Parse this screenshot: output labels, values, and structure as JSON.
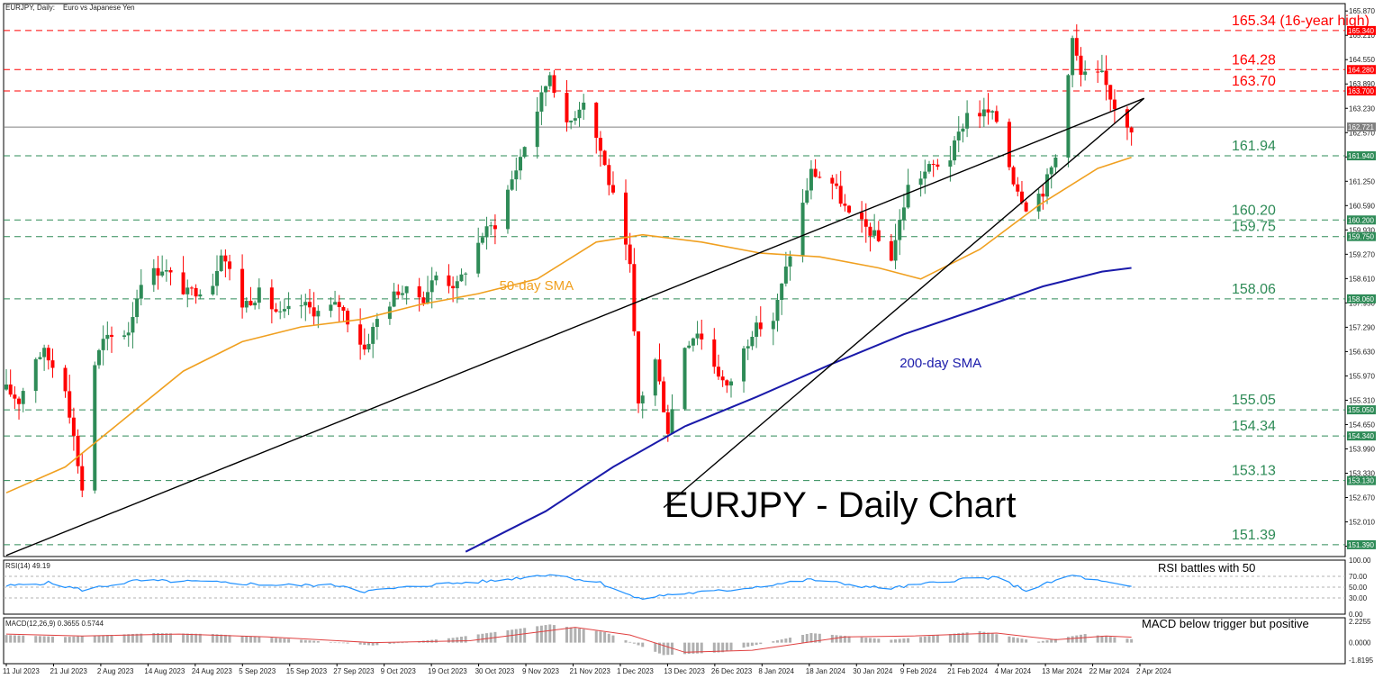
{
  "header": {
    "symbol_label": "EURJPY, Daily:",
    "description": "Euro vs Japanese Yen"
  },
  "colors": {
    "bull": "#2e8b57",
    "bear": "#ff0000",
    "sma50": "#f0a020",
    "sma200": "#1a1aaa",
    "support": "#2e8b57",
    "resistance": "#ff0000",
    "current": "#808080",
    "rsi": "#1e90ff",
    "macd_signal": "#e04040",
    "macd_hist": "#b0b0b0"
  },
  "chart_data": [
    {
      "type": "candlestick",
      "title": "EURJPY - Daily Chart",
      "x_axis_labels": [
        "11 Jul 2023",
        "21 Jul 2023",
        "2 Aug 2023",
        "14 Aug 2023",
        "24 Aug 2023",
        "5 Sep 2023",
        "15 Sep 2023",
        "27 Sep 2023",
        "9 Oct 2023",
        "19 Oct 2023",
        "30 Oct 2023",
        "9 Nov 2023",
        "21 Nov 2023",
        "1 Dec 2023",
        "13 Dec 2023",
        "26 Dec 2023",
        "8 Jan 2024",
        "18 Jan 2024",
        "30 Jan 2024",
        "9 Feb 2024",
        "21 Feb 2024",
        "4 Mar 2024",
        "13 Mar 2024",
        "22 Mar 2024",
        "2 Apr 2024"
      ],
      "y_ticks": [
        "165.870",
        "165.210",
        "164.550",
        "163.890",
        "163.230",
        "162.570",
        "161.910",
        "161.250",
        "160.590",
        "159.930",
        "159.270",
        "158.610",
        "157.950",
        "157.290",
        "156.630",
        "155.970",
        "155.310",
        "154.650",
        "153.990",
        "153.330",
        "152.670",
        "152.010",
        "151.350"
      ],
      "y_range": [
        151.07,
        166.07
      ],
      "current_price": "162.721",
      "levels": [
        {
          "value": 165.34,
          "label": "165.34 (16-year high)",
          "tag": "165.340",
          "kind": "resistance"
        },
        {
          "value": 164.28,
          "label": "164.28",
          "tag": "164.280",
          "kind": "resistance"
        },
        {
          "value": 163.7,
          "label": "163.70",
          "tag": "163.700",
          "kind": "resistance"
        },
        {
          "value": 161.94,
          "label": "161.94",
          "tag": "161.940",
          "kind": "support"
        },
        {
          "value": 160.2,
          "label": "160.20",
          "tag": "160.200",
          "kind": "support"
        },
        {
          "value": 159.75,
          "label": "159.75",
          "tag": "159.750",
          "kind": "support"
        },
        {
          "value": 158.06,
          "label": "158.06",
          "tag": "158.060",
          "kind": "support"
        },
        {
          "value": 155.05,
          "label": "155.05",
          "tag": "155.050",
          "kind": "support"
        },
        {
          "value": 154.34,
          "label": "154.34",
          "tag": "154.340",
          "kind": "support"
        },
        {
          "value": 153.13,
          "label": "153.13",
          "tag": "153.130",
          "kind": "support"
        },
        {
          "value": 151.39,
          "label": "151.39",
          "tag": "151.390",
          "kind": "support"
        }
      ],
      "anchors": [
        [
          "2023-07-10",
          155.6
        ],
        [
          "2023-07-13",
          155.3
        ],
        [
          "2023-07-17",
          156.5
        ],
        [
          "2023-07-19",
          156.6
        ],
        [
          "2023-07-24",
          155.7
        ],
        [
          "2023-07-28",
          152.9
        ],
        [
          "2023-07-31",
          156.3
        ],
        [
          "2023-08-02",
          156.9
        ],
        [
          "2023-08-08",
          157.2
        ],
        [
          "2023-08-11",
          158.6
        ],
        [
          "2023-08-16",
          158.9
        ],
        [
          "2023-08-22",
          158.2
        ],
        [
          "2023-08-28",
          158.5
        ],
        [
          "2023-08-30",
          159.4
        ],
        [
          "2023-09-04",
          157.9
        ],
        [
          "2023-09-08",
          158.2
        ],
        [
          "2023-09-13",
          157.6
        ],
        [
          "2023-09-18",
          157.9
        ],
        [
          "2023-09-22",
          157.7
        ],
        [
          "2023-09-27",
          157.9
        ],
        [
          "2023-10-03",
          156.7
        ],
        [
          "2023-10-06",
          157.5
        ],
        [
          "2023-10-11",
          158.3
        ],
        [
          "2023-10-17",
          158.1
        ],
        [
          "2023-10-20",
          158.7
        ],
        [
          "2023-10-25",
          158.4
        ],
        [
          "2023-10-31",
          159.8
        ],
        [
          "2023-11-03",
          160.1
        ],
        [
          "2023-11-08",
          161.6
        ],
        [
          "2023-11-13",
          163.2
        ],
        [
          "2023-11-16",
          164.2
        ],
        [
          "2023-11-20",
          162.7
        ],
        [
          "2023-11-24",
          163.5
        ],
        [
          "2023-11-28",
          162.1
        ],
        [
          "2023-12-01",
          160.8
        ],
        [
          "2023-12-05",
          158.9
        ],
        [
          "2023-12-07",
          155.2
        ],
        [
          "2023-12-11",
          156.4
        ],
        [
          "2023-12-14",
          154.5
        ],
        [
          "2023-12-18",
          156.8
        ],
        [
          "2023-12-21",
          157.2
        ],
        [
          "2023-12-28",
          155.6
        ],
        [
          "2024-01-03",
          157.2
        ],
        [
          "2024-01-08",
          157.5
        ],
        [
          "2024-01-12",
          159.3
        ],
        [
          "2024-01-17",
          161.5
        ],
        [
          "2024-01-22",
          161.2
        ],
        [
          "2024-01-26",
          160.3
        ],
        [
          "2024-01-31",
          159.9
        ],
        [
          "2024-02-05",
          159.2
        ],
        [
          "2024-02-09",
          161.1
        ],
        [
          "2024-02-14",
          161.6
        ],
        [
          "2024-02-19",
          161.9
        ],
        [
          "2024-02-23",
          163.1
        ],
        [
          "2024-02-28",
          163.1
        ],
        [
          "2024-03-01",
          162.9
        ],
        [
          "2024-03-05",
          161.3
        ],
        [
          "2024-03-08",
          160.6
        ],
        [
          "2024-03-12",
          161.0
        ],
        [
          "2024-03-15",
          161.9
        ],
        [
          "2024-03-19",
          165.1
        ],
        [
          "2024-03-21",
          164.1
        ],
        [
          "2024-03-26",
          164.1
        ],
        [
          "2024-03-29",
          163.3
        ],
        [
          "2024-04-02",
          162.72
        ]
      ],
      "sma50": [
        [
          "2023-07-10",
          152.8
        ],
        [
          "2023-07-24",
          153.5
        ],
        [
          "2023-08-07",
          154.8
        ],
        [
          "2023-08-21",
          156.1
        ],
        [
          "2023-09-04",
          156.9
        ],
        [
          "2023-09-18",
          157.3
        ],
        [
          "2023-10-02",
          157.5
        ],
        [
          "2023-10-16",
          157.9
        ],
        [
          "2023-10-30",
          158.2
        ],
        [
          "2023-11-13",
          158.6
        ],
        [
          "2023-11-27",
          159.6
        ],
        [
          "2023-12-08",
          159.8
        ],
        [
          "2023-12-22",
          159.6
        ],
        [
          "2024-01-05",
          159.3
        ],
        [
          "2024-01-19",
          159.2
        ],
        [
          "2024-02-02",
          158.9
        ],
        [
          "2024-02-12",
          158.6
        ],
        [
          "2024-02-26",
          159.4
        ],
        [
          "2024-03-11",
          160.6
        ],
        [
          "2024-03-25",
          161.6
        ],
        [
          "2024-04-02",
          161.9
        ]
      ],
      "sma200": [
        [
          "2023-10-27",
          151.2
        ],
        [
          "2023-11-15",
          152.3
        ],
        [
          "2023-12-01",
          153.5
        ],
        [
          "2023-12-18",
          154.6
        ],
        [
          "2024-01-04",
          155.4
        ],
        [
          "2024-01-22",
          156.3
        ],
        [
          "2024-02-08",
          157.1
        ],
        [
          "2024-02-26",
          157.8
        ],
        [
          "2024-03-12",
          158.4
        ],
        [
          "2024-03-26",
          158.8
        ],
        [
          "2024-04-02",
          158.9
        ]
      ],
      "trendlines": [
        {
          "start": [
            "2023-07-10",
            151.1
          ],
          "end": [
            "2024-04-05",
            163.5
          ]
        },
        {
          "start": [
            "2023-12-13",
            152.4
          ],
          "end": [
            "2024-04-05",
            163.5
          ]
        }
      ],
      "annotations": [
        {
          "text": "50-day SMA",
          "at": [
            "2023-11-04",
            158.3
          ],
          "color_key": "sma50"
        },
        {
          "text": "200-day SMA",
          "at": [
            "2024-02-07",
            156.2
          ],
          "color_key": "sma200"
        }
      ]
    },
    {
      "type": "line",
      "title": "RSI(14) 49.19",
      "y_ticks": [
        "100.00",
        "70.00",
        "50.00",
        "30.00",
        "0.00"
      ],
      "y_range": [
        0,
        100
      ],
      "reference_levels": [
        70,
        50,
        30
      ],
      "annotation": "RSI battles with 50",
      "series": [
        {
          "name": "RSI(14)",
          "points": [
            [
              "2023-07-10",
              52
            ],
            [
              "2023-07-20",
              58
            ],
            [
              "2023-07-28",
              45
            ],
            [
              "2023-08-10",
              62
            ],
            [
              "2023-08-25",
              60
            ],
            [
              "2023-09-12",
              54
            ],
            [
              "2023-09-28",
              53
            ],
            [
              "2023-10-03",
              42
            ],
            [
              "2023-10-20",
              55
            ],
            [
              "2023-11-03",
              62
            ],
            [
              "2023-11-16",
              74
            ],
            [
              "2023-11-28",
              58
            ],
            [
              "2023-12-07",
              28
            ],
            [
              "2023-12-14",
              36
            ],
            [
              "2023-12-28",
              44
            ],
            [
              "2024-01-17",
              64
            ],
            [
              "2024-01-31",
              50
            ],
            [
              "2024-02-05",
              48
            ],
            [
              "2024-02-23",
              66
            ],
            [
              "2024-03-01",
              67
            ],
            [
              "2024-03-08",
              44
            ],
            [
              "2024-03-19",
              72
            ],
            [
              "2024-03-26",
              60
            ],
            [
              "2024-04-02",
              49.19
            ]
          ]
        }
      ]
    },
    {
      "type": "bar",
      "title": "MACD(12,26,9) 0.3655 0.5744",
      "y_ticks": [
        "2.2255",
        "0.0000",
        "-1.8195"
      ],
      "y_range": [
        -2.2,
        2.6
      ],
      "annotation": "MACD below trigger but positive",
      "series": [
        {
          "name": "MACD",
          "points": [
            [
              "2023-07-10",
              0.8
            ],
            [
              "2023-07-24",
              0.6
            ],
            [
              "2023-08-14",
              1.0
            ],
            [
              "2023-08-28",
              0.9
            ],
            [
              "2023-09-15",
              0.4
            ],
            [
              "2023-10-05",
              -0.3
            ],
            [
              "2023-10-24",
              0.5
            ],
            [
              "2023-11-16",
              1.9
            ],
            [
              "2023-11-29",
              1.1
            ],
            [
              "2023-12-13",
              -1.3
            ],
            [
              "2023-12-27",
              -1.0
            ],
            [
              "2024-01-17",
              1.0
            ],
            [
              "2024-02-05",
              0.3
            ],
            [
              "2024-02-26",
              1.2
            ],
            [
              "2024-03-11",
              0.1
            ],
            [
              "2024-03-22",
              0.9
            ],
            [
              "2024-04-02",
              0.3655
            ]
          ]
        },
        {
          "name": "Signal",
          "points": [
            [
              "2023-07-10",
              0.9
            ],
            [
              "2023-07-28",
              0.7
            ],
            [
              "2023-08-20",
              0.9
            ],
            [
              "2023-09-10",
              0.6
            ],
            [
              "2023-10-05",
              0.0
            ],
            [
              "2023-10-28",
              0.2
            ],
            [
              "2023-11-22",
              1.6
            ],
            [
              "2023-12-05",
              0.8
            ],
            [
              "2023-12-18",
              -1.0
            ],
            [
              "2024-01-03",
              -0.8
            ],
            [
              "2024-01-25",
              0.6
            ],
            [
              "2024-02-10",
              0.7
            ],
            [
              "2024-03-01",
              1.0
            ],
            [
              "2024-03-15",
              0.3
            ],
            [
              "2024-03-27",
              0.7
            ],
            [
              "2024-04-02",
              0.5744
            ]
          ]
        }
      ]
    }
  ]
}
